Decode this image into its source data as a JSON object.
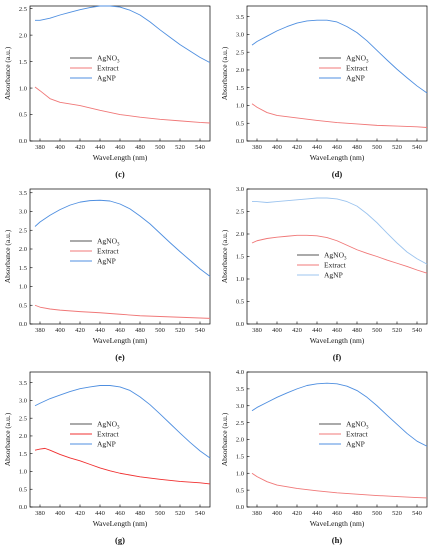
{
  "figure": {
    "panels": [
      "c",
      "d",
      "e",
      "f",
      "g",
      "h"
    ]
  },
  "chart_data": [
    {
      "id": "c",
      "type": "line",
      "caption": "(c)",
      "xlabel": "WaveLength (nm)",
      "ylabel": "Absorbance (a.u.)",
      "xlim": [
        370,
        550
      ],
      "ylim": [
        0,
        2.55
      ],
      "xticks": [
        380,
        400,
        420,
        440,
        460,
        480,
        500,
        520,
        540
      ],
      "yticks": [
        0.0,
        0.5,
        1.0,
        1.5,
        2.0,
        2.5
      ],
      "ytick_labels": [
        "0.0",
        "0.5",
        "1.0",
        "1.5",
        "2.0",
        "2.5"
      ],
      "legend": "center-left",
      "series": [
        {
          "name": "AgNO3",
          "name_sub": "3",
          "name_base": "AgNO",
          "color": "#555555",
          "x": [],
          "y": []
        },
        {
          "name": "Extract",
          "color": "#f07878",
          "x": [
            375,
            380,
            390,
            400,
            410,
            420,
            440,
            460,
            480,
            500,
            520,
            540,
            550
          ],
          "y": [
            1.02,
            0.95,
            0.8,
            0.73,
            0.7,
            0.67,
            0.58,
            0.5,
            0.45,
            0.41,
            0.38,
            0.35,
            0.34
          ]
        },
        {
          "name": "AgNP",
          "color": "#4f8fe0",
          "x": [
            375,
            380,
            390,
            400,
            410,
            420,
            430,
            440,
            450,
            460,
            470,
            480,
            490,
            500,
            510,
            520,
            530,
            540,
            550
          ],
          "y": [
            2.28,
            2.28,
            2.32,
            2.38,
            2.43,
            2.48,
            2.52,
            2.55,
            2.55,
            2.53,
            2.47,
            2.38,
            2.25,
            2.1,
            1.96,
            1.82,
            1.7,
            1.58,
            1.48
          ]
        }
      ]
    },
    {
      "id": "d",
      "type": "line",
      "caption": "(d)",
      "xlabel": "WaveLength (nm)",
      "ylabel": "Absorbance (a.u.)",
      "xlim": [
        370,
        550
      ],
      "ylim": [
        0,
        3.8
      ],
      "xticks": [
        380,
        400,
        420,
        440,
        460,
        480,
        500,
        520,
        540
      ],
      "yticks": [
        0.0,
        0.5,
        1.0,
        1.5,
        2.0,
        2.5,
        3.0,
        3.5
      ],
      "ytick_labels": [
        "0.0",
        "0.5",
        "1.0",
        "1.5",
        "2.0",
        "2.5",
        "3.0",
        "3.5"
      ],
      "legend": "center-right",
      "series": [
        {
          "name": "AgNO3",
          "name_sub": "3",
          "name_base": "AgNO",
          "color": "#555555",
          "x": [],
          "y": []
        },
        {
          "name": "Extract",
          "color": "#f07878",
          "x": [
            375,
            380,
            390,
            400,
            420,
            440,
            460,
            480,
            500,
            520,
            540,
            550
          ],
          "y": [
            1.05,
            0.95,
            0.8,
            0.72,
            0.65,
            0.58,
            0.52,
            0.48,
            0.44,
            0.42,
            0.4,
            0.38
          ]
        },
        {
          "name": "AgNP",
          "color": "#4f8fe0",
          "x": [
            375,
            380,
            390,
            400,
            410,
            420,
            430,
            440,
            450,
            460,
            470,
            480,
            490,
            500,
            510,
            520,
            530,
            540,
            550
          ],
          "y": [
            2.7,
            2.8,
            2.95,
            3.1,
            3.22,
            3.32,
            3.38,
            3.4,
            3.4,
            3.35,
            3.22,
            3.05,
            2.82,
            2.55,
            2.28,
            2.02,
            1.78,
            1.55,
            1.35
          ]
        }
      ]
    },
    {
      "id": "e",
      "type": "line",
      "caption": "(e)",
      "xlabel": "WaveLength (nm)",
      "ylabel": "Absorbance (a.u.)",
      "xlim": [
        370,
        550
      ],
      "ylim": [
        0,
        3.6
      ],
      "xticks": [
        380,
        400,
        420,
        440,
        460,
        480,
        500,
        520,
        540
      ],
      "yticks": [
        0.0,
        0.5,
        1.0,
        1.5,
        2.0,
        2.5,
        3.0,
        3.5
      ],
      "ytick_labels": [
        "0.0",
        "0.5",
        "1.0",
        "1.5",
        "2.0",
        "2.5",
        "3.0",
        "3.5"
      ],
      "legend": "center-left",
      "series": [
        {
          "name": "AgNO3",
          "name_sub": "3",
          "name_base": "AgNO",
          "color": "#555555",
          "x": [],
          "y": []
        },
        {
          "name": "Extract",
          "color": "#f07878",
          "x": [
            375,
            380,
            390,
            400,
            420,
            440,
            460,
            480,
            500,
            520,
            540,
            550
          ],
          "y": [
            0.5,
            0.45,
            0.4,
            0.37,
            0.33,
            0.3,
            0.26,
            0.22,
            0.2,
            0.18,
            0.16,
            0.15
          ]
        },
        {
          "name": "AgNP",
          "color": "#4f8fe0",
          "x": [
            375,
            380,
            390,
            400,
            410,
            420,
            430,
            440,
            450,
            460,
            470,
            480,
            490,
            500,
            510,
            520,
            530,
            540,
            550
          ],
          "y": [
            2.6,
            2.72,
            2.9,
            3.05,
            3.17,
            3.25,
            3.29,
            3.3,
            3.28,
            3.2,
            3.07,
            2.88,
            2.67,
            2.42,
            2.17,
            1.93,
            1.7,
            1.47,
            1.27
          ]
        }
      ]
    },
    {
      "id": "f",
      "type": "line",
      "caption": "(f)",
      "xlabel": "WaveLength (nm)",
      "ylabel": "Absorbance (a.u.)",
      "xlim": [
        370,
        550
      ],
      "ylim": [
        0,
        3.0
      ],
      "xticks": [
        380,
        400,
        420,
        440,
        460,
        480,
        500,
        520,
        540
      ],
      "yticks": [
        0.0,
        0.5,
        1.0,
        1.5,
        2.0,
        2.5,
        3.0
      ],
      "ytick_labels": [
        "0.0",
        "0.5",
        "1.0",
        "1.5",
        "2.0",
        "2.5",
        "3.0"
      ],
      "legend": "bottom-center",
      "series": [
        {
          "name": "AgNO3",
          "name_sub": "3",
          "name_base": "AgNO",
          "color": "#555555",
          "x": [],
          "y": []
        },
        {
          "name": "Extract",
          "color": "#f07878",
          "x": [
            375,
            380,
            390,
            400,
            410,
            420,
            430,
            440,
            450,
            460,
            470,
            480,
            490,
            500,
            510,
            520,
            530,
            540,
            550
          ],
          "y": [
            1.8,
            1.85,
            1.9,
            1.93,
            1.95,
            1.97,
            1.97,
            1.96,
            1.92,
            1.85,
            1.75,
            1.65,
            1.57,
            1.5,
            1.42,
            1.35,
            1.28,
            1.2,
            1.13
          ]
        },
        {
          "name": "AgNP",
          "color": "#9cc4ef",
          "x": [
            375,
            380,
            390,
            400,
            410,
            420,
            430,
            440,
            450,
            460,
            470,
            480,
            490,
            500,
            510,
            520,
            530,
            540,
            550
          ],
          "y": [
            2.72,
            2.72,
            2.7,
            2.72,
            2.74,
            2.76,
            2.78,
            2.8,
            2.8,
            2.78,
            2.72,
            2.62,
            2.45,
            2.25,
            2.02,
            1.8,
            1.6,
            1.45,
            1.33
          ]
        }
      ]
    },
    {
      "id": "g",
      "type": "line",
      "caption": "(g)",
      "xlabel": "WaveLength (nm)",
      "ylabel": "Absorbance (a.u.)",
      "xlim": [
        370,
        550
      ],
      "ylim": [
        0,
        3.8
      ],
      "xticks": [
        380,
        400,
        420,
        440,
        460,
        480,
        500,
        520,
        540
      ],
      "yticks": [
        0.0,
        0.5,
        1.0,
        1.5,
        2.0,
        2.5,
        3.0,
        3.5
      ],
      "ytick_labels": [
        "0.0",
        "0.5",
        "1.0",
        "1.5",
        "2.0",
        "2.5",
        "3.0",
        "3.5"
      ],
      "legend": "center-left",
      "series": [
        {
          "name": "AgNO3",
          "name_sub": "3",
          "name_base": "AgNO",
          "color": "#555555",
          "x": [],
          "y": []
        },
        {
          "name": "Extract",
          "color": "#f03030",
          "x": [
            375,
            380,
            385,
            390,
            400,
            410,
            420,
            430,
            440,
            450,
            460,
            480,
            500,
            520,
            540,
            550
          ],
          "y": [
            1.6,
            1.63,
            1.65,
            1.6,
            1.48,
            1.38,
            1.3,
            1.2,
            1.1,
            1.02,
            0.95,
            0.85,
            0.78,
            0.72,
            0.68,
            0.65
          ]
        },
        {
          "name": "AgNP",
          "color": "#4f8fe0",
          "x": [
            375,
            380,
            390,
            400,
            410,
            420,
            430,
            440,
            450,
            460,
            470,
            480,
            490,
            500,
            510,
            520,
            530,
            540,
            550
          ],
          "y": [
            2.85,
            2.92,
            3.05,
            3.15,
            3.25,
            3.33,
            3.38,
            3.42,
            3.42,
            3.38,
            3.28,
            3.1,
            2.88,
            2.62,
            2.35,
            2.08,
            1.82,
            1.58,
            1.38
          ]
        }
      ]
    },
    {
      "id": "h",
      "type": "line",
      "caption": "(h)",
      "xlabel": "WaveLength (nm)",
      "ylabel": "Absorbance (a.u.)",
      "xlim": [
        370,
        550
      ],
      "ylim": [
        0,
        4.0
      ],
      "xticks": [
        380,
        400,
        420,
        440,
        460,
        480,
        500,
        520,
        540
      ],
      "yticks": [
        0.0,
        0.5,
        1.0,
        1.5,
        2.0,
        2.5,
        3.0,
        3.5,
        4.0
      ],
      "ytick_labels": [
        "0.0",
        "0.5",
        "1.0",
        "1.5",
        "2.0",
        "2.5",
        "3.0",
        "3.5",
        "4.0"
      ],
      "legend": "center-right",
      "series": [
        {
          "name": "AgNO3",
          "name_sub": "3",
          "name_base": "AgNO",
          "color": "#555555",
          "x": [],
          "y": []
        },
        {
          "name": "Extract",
          "color": "#f07878",
          "x": [
            375,
            380,
            390,
            400,
            420,
            440,
            460,
            480,
            500,
            520,
            540,
            550
          ],
          "y": [
            1.0,
            0.9,
            0.75,
            0.65,
            0.55,
            0.48,
            0.42,
            0.38,
            0.34,
            0.31,
            0.28,
            0.27
          ]
        },
        {
          "name": "AgNP",
          "color": "#4f8fe0",
          "x": [
            375,
            380,
            390,
            400,
            410,
            420,
            430,
            440,
            450,
            460,
            470,
            480,
            490,
            500,
            510,
            520,
            530,
            540,
            550
          ],
          "y": [
            2.85,
            2.95,
            3.1,
            3.25,
            3.38,
            3.5,
            3.6,
            3.65,
            3.67,
            3.65,
            3.58,
            3.45,
            3.25,
            3.0,
            2.72,
            2.45,
            2.18,
            1.95,
            1.8
          ]
        }
      ]
    }
  ]
}
